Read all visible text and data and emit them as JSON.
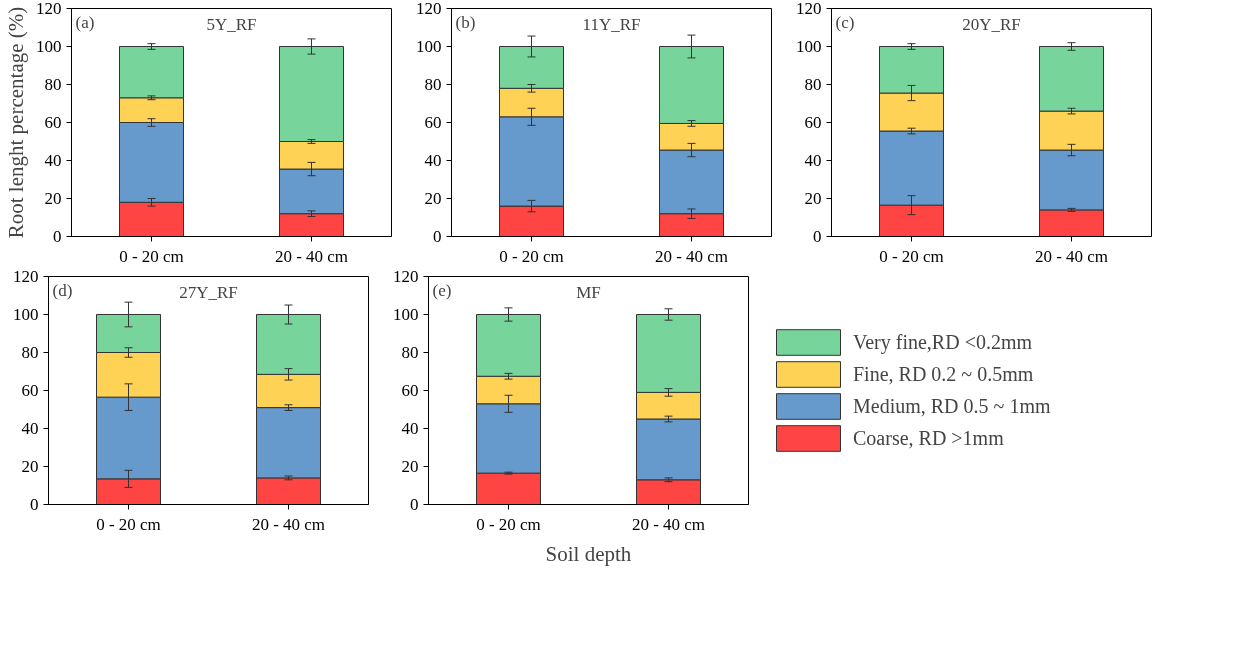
{
  "chart_data": [
    {
      "type": "bar",
      "stacked": true,
      "title": "5Y_RF",
      "annotations": [
        "(a)"
      ],
      "ylabel": "Root lenght percentage (%)",
      "categories": [
        "0 - 20 cm",
        "20 - 40 cm"
      ],
      "ylim": [
        0,
        120
      ],
      "yticks": [
        0,
        20,
        40,
        60,
        80,
        100,
        120
      ],
      "grid": false,
      "legend": false,
      "series": [
        {
          "color": "#ff4444",
          "values": [
            18,
            12
          ],
          "errors": [
            2,
            1.5
          ]
        },
        {
          "color": "#6699cc",
          "values": [
            42,
            23.5
          ],
          "errors": [
            2,
            3.5
          ]
        },
        {
          "color": "#fdd255",
          "values": [
            13,
            14.5
          ],
          "errors": [
            1,
            1
          ]
        },
        {
          "color": "#77d49b",
          "values": [
            27,
            50
          ],
          "errors": [
            1.5,
            4
          ]
        }
      ]
    },
    {
      "type": "bar",
      "stacked": true,
      "title": "11Y_RF",
      "annotations": [
        "(b)"
      ],
      "categories": [
        "0 - 20 cm",
        "20 - 40 cm"
      ],
      "ylim": [
        0,
        120
      ],
      "yticks": [
        0,
        20,
        40,
        60,
        80,
        100,
        120
      ],
      "grid": false,
      "legend": false,
      "series": [
        {
          "color": "#ff4444",
          "values": [
            16,
            12
          ],
          "errors": [
            3,
            2.5
          ]
        },
        {
          "color": "#6699cc",
          "values": [
            47,
            33.5
          ],
          "errors": [
            4.5,
            3.5
          ]
        },
        {
          "color": "#fdd255",
          "values": [
            15,
            14
          ],
          "errors": [
            2,
            1.5
          ]
        },
        {
          "color": "#77d49b",
          "values": [
            22,
            40.5
          ],
          "errors": [
            5.5,
            6
          ]
        }
      ]
    },
    {
      "type": "bar",
      "stacked": true,
      "title": "20Y_RF",
      "annotations": [
        "(c)"
      ],
      "categories": [
        "0 - 20 cm",
        "20 - 40 cm"
      ],
      "ylim": [
        0,
        120
      ],
      "yticks": [
        0,
        20,
        40,
        60,
        80,
        100,
        120
      ],
      "grid": false,
      "legend": false,
      "series": [
        {
          "color": "#ff4444",
          "values": [
            16.5,
            14
          ],
          "errors": [
            5,
            0.8
          ]
        },
        {
          "color": "#6699cc",
          "values": [
            39,
            31.5
          ],
          "errors": [
            1.5,
            3
          ]
        },
        {
          "color": "#fdd255",
          "values": [
            20,
            20.5
          ],
          "errors": [
            4,
            1.5
          ]
        },
        {
          "color": "#77d49b",
          "values": [
            24.5,
            34
          ],
          "errors": [
            1.5,
            2
          ]
        }
      ]
    },
    {
      "type": "bar",
      "stacked": true,
      "title": "27Y_RF",
      "annotations": [
        "(d)"
      ],
      "categories": [
        "0 - 20 cm",
        "20 - 40 cm"
      ],
      "ylim": [
        0,
        120
      ],
      "yticks": [
        0,
        20,
        40,
        60,
        80,
        100,
        120
      ],
      "grid": false,
      "legend": false,
      "series": [
        {
          "color": "#ff4444",
          "values": [
            13.5,
            14
          ],
          "errors": [
            4.5,
            1
          ]
        },
        {
          "color": "#6699cc",
          "values": [
            43,
            37
          ],
          "errors": [
            7,
            1.5
          ]
        },
        {
          "color": "#fdd255",
          "values": [
            23.5,
            17.5
          ],
          "errors": [
            2.5,
            3
          ]
        },
        {
          "color": "#77d49b",
          "values": [
            20,
            31.5
          ],
          "errors": [
            6.5,
            5
          ]
        }
      ]
    },
    {
      "type": "bar",
      "stacked": true,
      "title": "MF",
      "annotations": [
        "(e)"
      ],
      "xlabel": "Soil depth",
      "categories": [
        "0 - 20 cm",
        "20 - 40 cm"
      ],
      "ylim": [
        0,
        120
      ],
      "yticks": [
        0,
        20,
        40,
        60,
        80,
        100,
        120
      ],
      "grid": false,
      "legend": "right",
      "series": [
        {
          "name": "Coarse, RD >1mm",
          "color": "#ff4444",
          "values": [
            16.5,
            13
          ],
          "errors": [
            0.5,
            1
          ]
        },
        {
          "name": "Medium, RD 0.5 ~ 1mm",
          "color": "#6699cc",
          "values": [
            36.5,
            32
          ],
          "errors": [
            4.5,
            1.5
          ]
        },
        {
          "name": "Fine, RD 0.2 ~ 0.5mm",
          "color": "#fdd255",
          "values": [
            14.5,
            14
          ],
          "errors": [
            1.5,
            2
          ]
        },
        {
          "name": "Very fine,RD <0.2mm",
          "color": "#77d49b",
          "values": [
            32.5,
            41
          ],
          "errors": [
            3.5,
            3
          ]
        }
      ]
    }
  ]
}
